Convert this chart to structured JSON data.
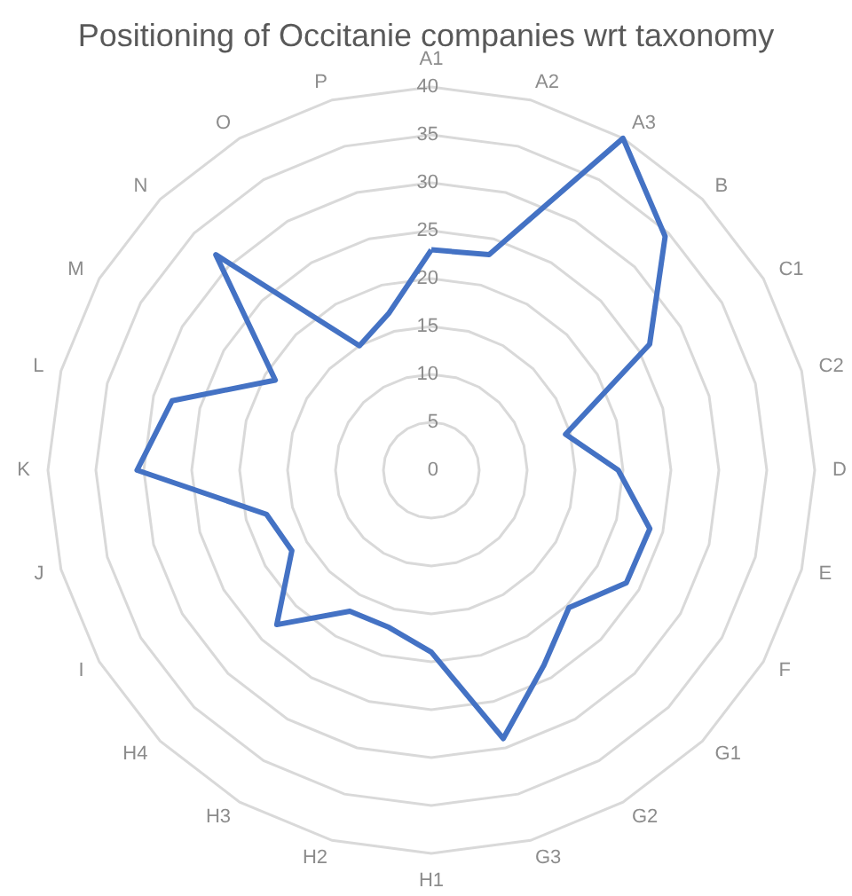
{
  "chart_data": {
    "type": "radar",
    "title": "Positioning of Occitanie companies wrt taxonomy",
    "categories": [
      "A1",
      "A2",
      "A3",
      "B",
      "C1",
      "C2",
      "D",
      "E",
      "F",
      "G1",
      "G2",
      "G3",
      "H1",
      "H2",
      "H3",
      "H4",
      "I",
      "J",
      "K",
      "L",
      "M",
      "N",
      "O",
      "P"
    ],
    "series": [
      {
        "color": "#4472c4",
        "values": [
          23,
          23.3,
          40,
          34.5,
          26.3,
          14.5,
          19.5,
          23.6,
          23.5,
          20.3,
          23.5,
          29,
          19,
          17,
          17,
          22.8,
          16.8,
          17.8,
          30.7,
          28,
          18.8,
          31.8,
          15,
          17
        ]
      }
    ],
    "ylim": [
      0,
      40
    ],
    "yticks": [
      0,
      5,
      10,
      15,
      20,
      25,
      30,
      35,
      40
    ],
    "grid": true,
    "marker": "none"
  }
}
